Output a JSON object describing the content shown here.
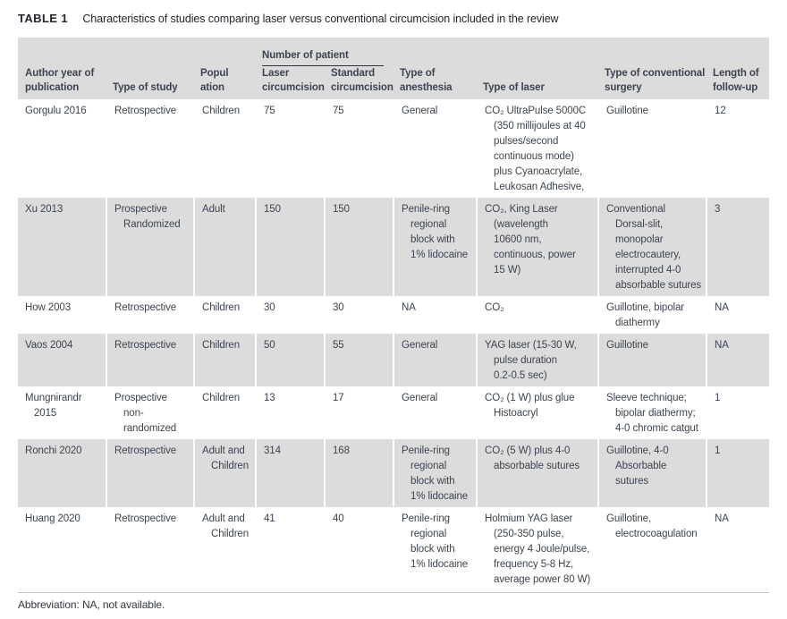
{
  "title": {
    "label": "TABLE 1",
    "caption": "Characteristics of studies comparing laser versus conventional circumcision included in the review"
  },
  "table": {
    "spanner": "Number of patient",
    "columns": [
      {
        "label": "Author year of publication",
        "lines": [
          "Author year of",
          "publication"
        ]
      },
      {
        "label": "Type of study",
        "lines": [
          "Type of study"
        ]
      },
      {
        "label": "Population",
        "lines": [
          "Popul",
          "ation"
        ]
      },
      {
        "label": "Laser circumcision",
        "lines": [
          "Laser",
          "circumcision"
        ]
      },
      {
        "label": "Standard circumcision",
        "lines": [
          "Standard",
          "circumcision"
        ]
      },
      {
        "label": "Type of anesthesia",
        "lines": [
          "Type of",
          "anesthesia"
        ]
      },
      {
        "label": "Type of laser",
        "lines": [
          "Type of laser"
        ]
      },
      {
        "label": "Type of conventional surgery",
        "lines": [
          "Type of conventional",
          "surgery"
        ]
      },
      {
        "label": "Length of follow-up",
        "lines": [
          "Length of",
          "follow-up"
        ]
      }
    ],
    "rows": [
      {
        "cells": [
          "Gorgulu 2016",
          "Retrospective",
          "Children",
          "75",
          "75",
          "General",
          [
            "CO₂ UltraPulse 5000C",
            "(350 millijoules at 40",
            "pulses/second",
            "continuous mode)",
            "plus Cyanoacrylate,",
            "Leukosan Adhesive,"
          ],
          "Guillotine",
          "12"
        ]
      },
      {
        "cells": [
          "Xu 2013",
          [
            "Prospective",
            "Randomized"
          ],
          "Adult",
          "150",
          "150",
          [
            "Penile-ring",
            "regional",
            "block with",
            "1% lidocaine"
          ],
          [
            "CO₂, King Laser",
            "(wavelength",
            "10600 nm,",
            "continuous, power",
            "15 W)"
          ],
          [
            "Conventional",
            "Dorsal-slit,",
            "monopolar",
            "electrocautery,",
            "interrupted 4-0",
            "absorbable sutures"
          ],
          "3"
        ]
      },
      {
        "cells": [
          "How 2003",
          "Retrospective",
          "Children",
          "30",
          "30",
          "NA",
          "CO₂",
          [
            "Guillotine, bipolar",
            "diathermy"
          ],
          "NA"
        ]
      },
      {
        "cells": [
          "Vaos 2004",
          "Retrospective",
          "Children",
          "50",
          "55",
          "General",
          [
            "YAG laser (15-30 W,",
            "pulse duration",
            "0.2-0.5 sec)"
          ],
          "Guillotine",
          "NA"
        ]
      },
      {
        "cells": [
          [
            "Mungnirandr",
            "2015"
          ],
          [
            "Prospective",
            "non-",
            "randomized"
          ],
          "Children",
          "13",
          "17",
          "General",
          [
            "CO₂ (1 W) plus glue",
            "Histoacryl"
          ],
          [
            "Sleeve technique;",
            "bipolar diathermy;",
            "4-0 chromic catgut"
          ],
          "1"
        ]
      },
      {
        "cells": [
          "Ronchi 2020",
          "Retrospective",
          [
            "Adult and",
            "Children"
          ],
          "314",
          "168",
          [
            "Penile-ring",
            "regional",
            "block with",
            "1% lidocaine"
          ],
          [
            "CO₂ (5 W) plus 4-0",
            "absorbable sutures"
          ],
          [
            "Guillotine, 4-0",
            "Absorbable",
            "sutures"
          ],
          "1"
        ]
      },
      {
        "cells": [
          "Huang 2020",
          "Retrospective",
          [
            "Adult and",
            "Children"
          ],
          "41",
          "40",
          [
            "Penile-ring",
            "regional",
            "block with",
            "1% lidocaine"
          ],
          [
            "Holmium YAG laser",
            "(250-350 pulse,",
            "energy 4 Joule/pulse,",
            "frequency 5-8 Hz,",
            "average power 80 W)"
          ],
          [
            "Guillotine,",
            "electrocoagulation"
          ],
          "NA"
        ]
      }
    ]
  },
  "footnote": "Abbreviation: NA, not available.",
  "colors": {
    "header_bg": "#dcdcdc",
    "shaded_row_bg": "#dcdcdc",
    "body_text": "#3d4450",
    "title_text": "#22262c",
    "spanner_underline": "#2e333d",
    "footnote_rule": "#c6c6c6"
  }
}
